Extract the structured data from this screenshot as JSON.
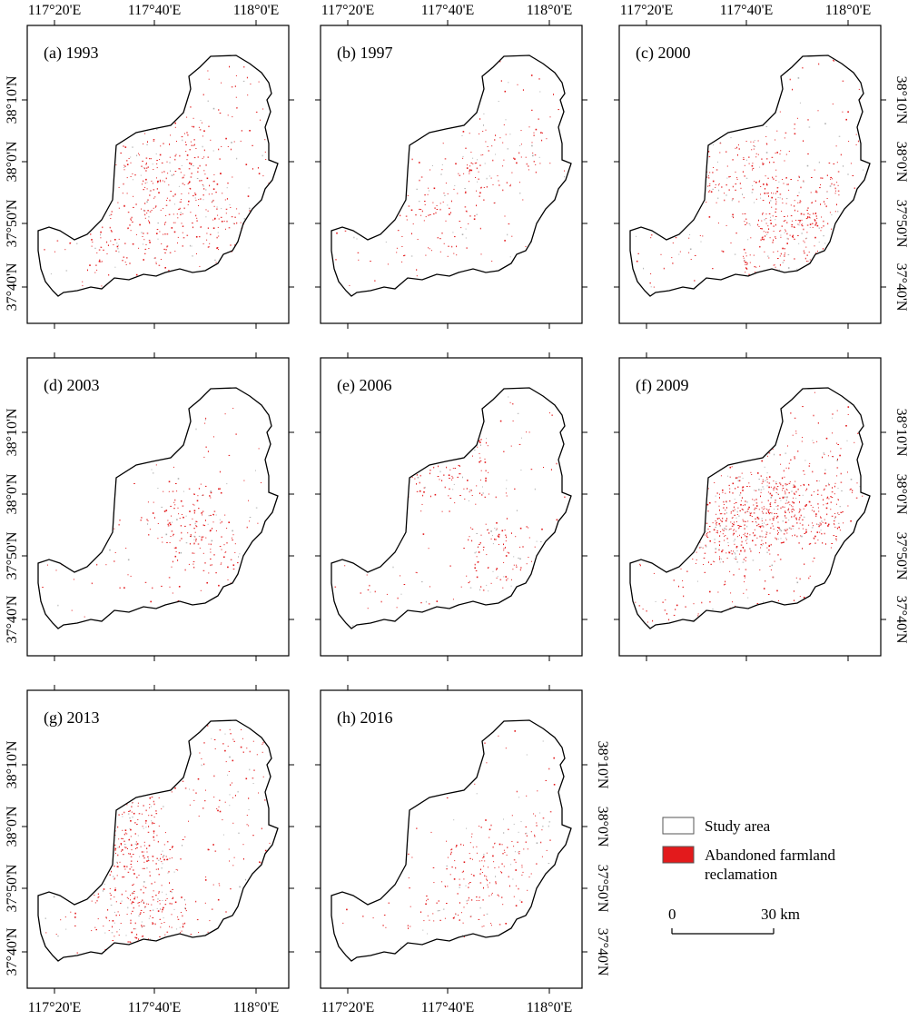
{
  "map": {
    "lon_ticks": [
      "117°20'E",
      "117°40'E",
      "118°0'E"
    ],
    "lat_ticks": [
      "37°40'N",
      "37°50'N",
      "38°0'N",
      "38°10'N"
    ],
    "panels": [
      {
        "label": "(a) 1993",
        "density": "medium"
      },
      {
        "label": "(b) 1997",
        "density": "low"
      },
      {
        "label": "(c) 2000",
        "density": "medium"
      },
      {
        "label": "(d) 2003",
        "density": "low"
      },
      {
        "label": "(e) 2006",
        "density": "low"
      },
      {
        "label": "(f) 2009",
        "density": "high"
      },
      {
        "label": "(g) 2013",
        "density": "medium"
      },
      {
        "label": "(h) 2016",
        "density": "low"
      }
    ]
  },
  "legend": {
    "study_area": "Study area",
    "abandoned_line1": "Abandoned farmland",
    "abandoned_line2": "reclamation",
    "scale_start": "0",
    "scale_end": "30 km"
  },
  "colors": {
    "reclamation": "#e31a1c",
    "boundary": "#000000",
    "frame": "#000000"
  }
}
